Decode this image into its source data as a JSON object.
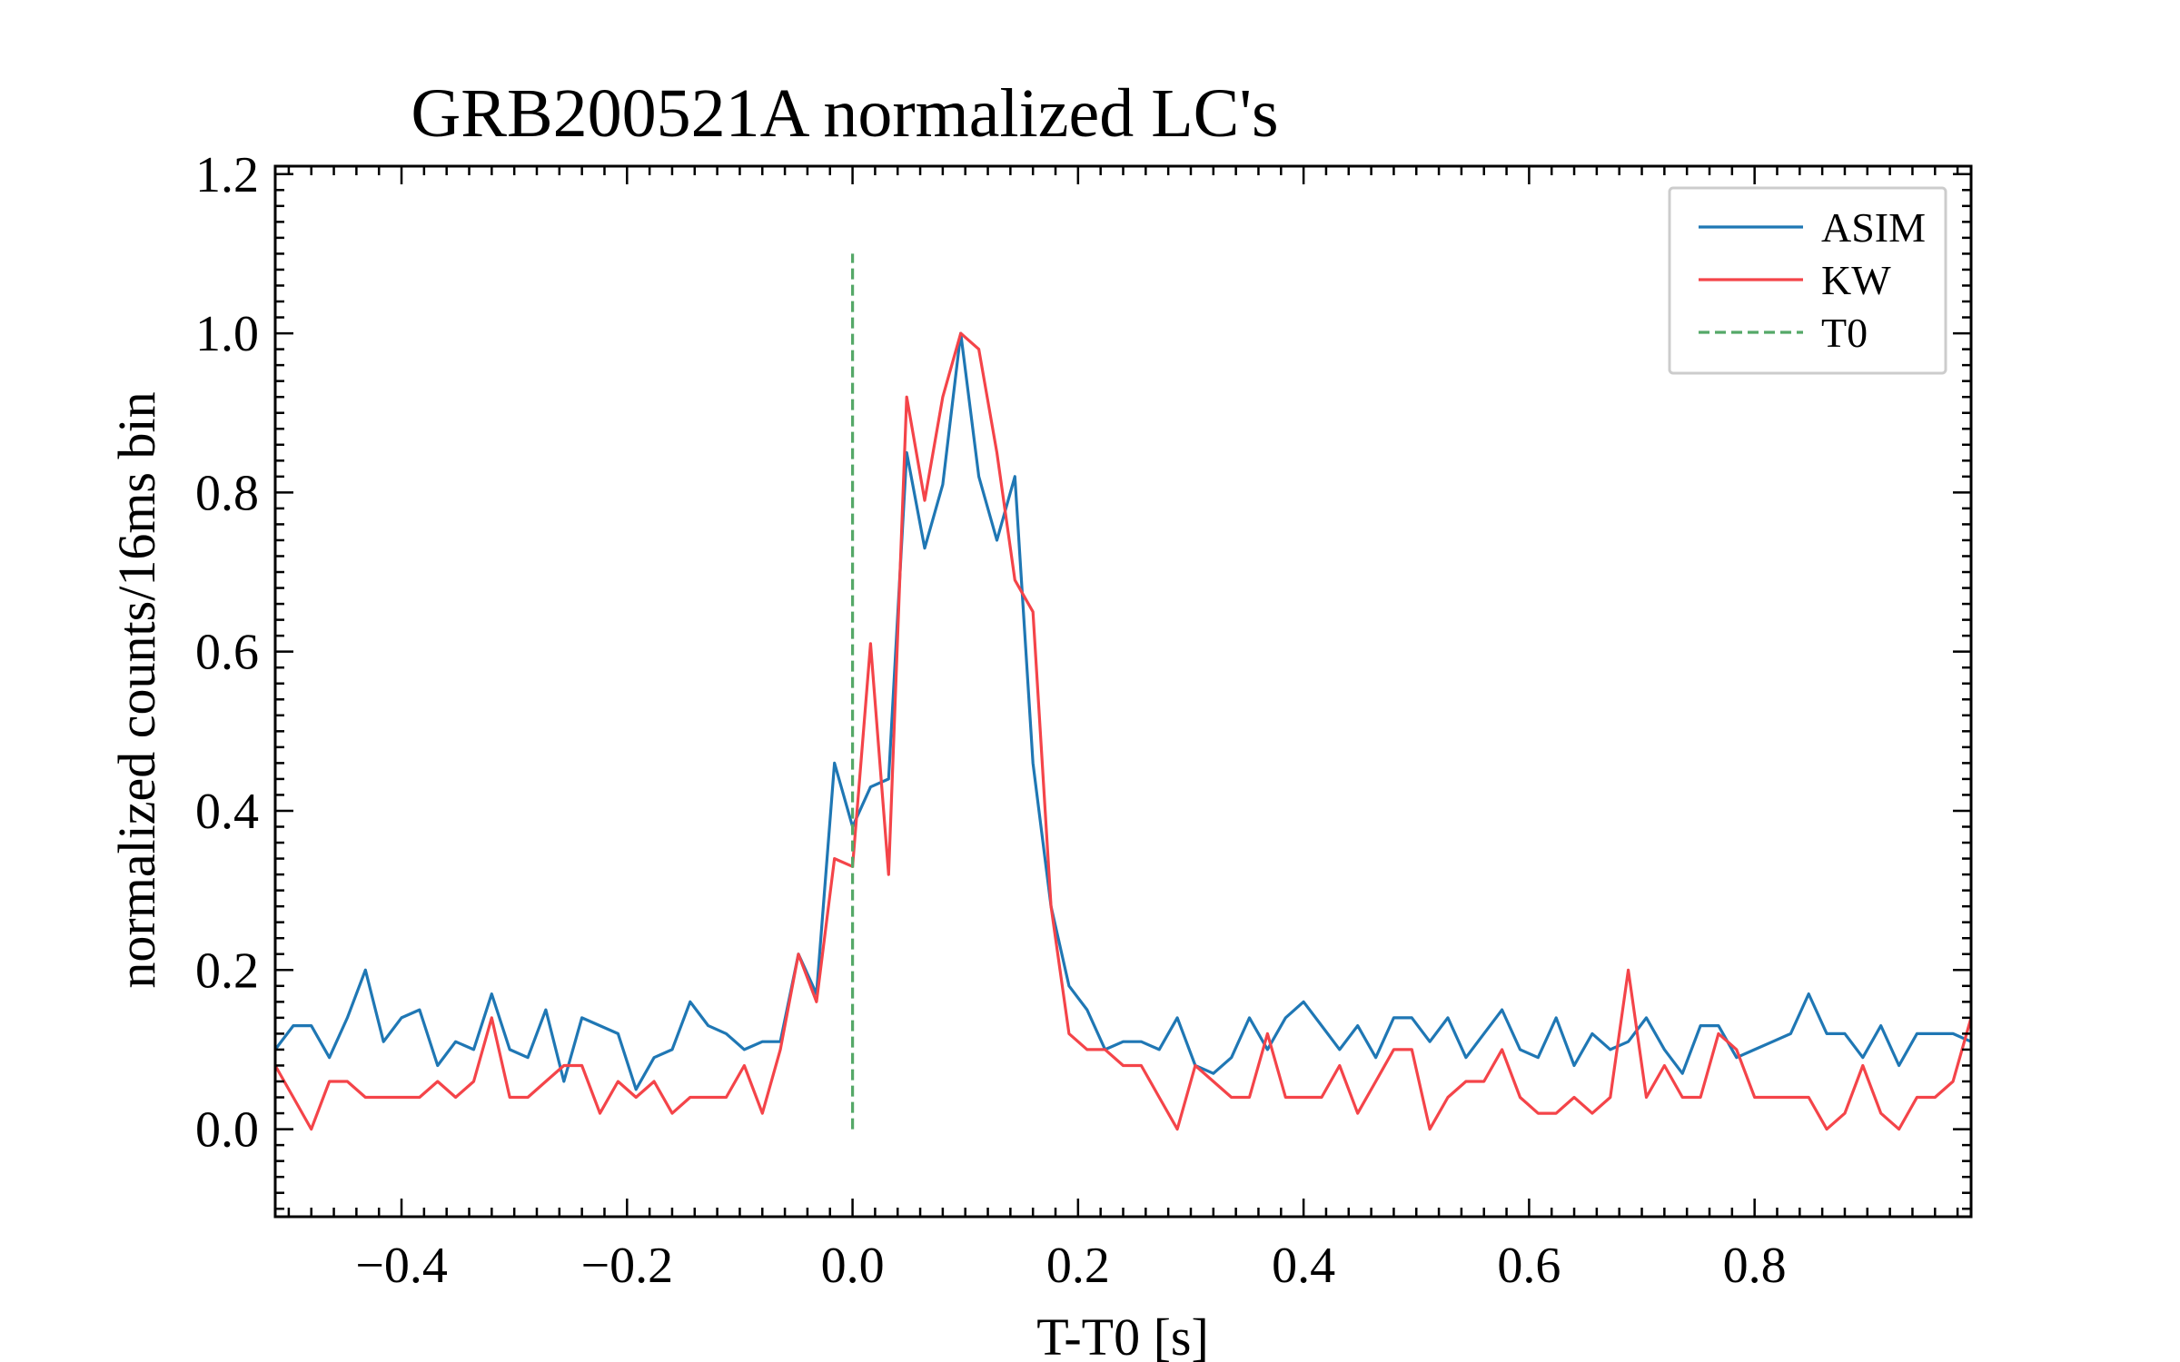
{
  "chart_data": {
    "type": "line",
    "title": "GRB200521A normalized LC's",
    "xlabel": "T-T0 [s]",
    "ylabel": "normalized counts/16ms bin",
    "xlim": [
      -0.512,
      0.992
    ],
    "ylim": [
      -0.11,
      1.21
    ],
    "xticks": [
      -0.4,
      -0.2,
      0.0,
      0.2,
      0.4,
      0.6,
      0.8
    ],
    "xtick_labels": [
      "−0.4",
      "−0.2",
      "0.0",
      "0.2",
      "0.4",
      "0.6",
      "0.8"
    ],
    "yticks": [
      0.0,
      0.2,
      0.4,
      0.6,
      0.8,
      1.0,
      1.2
    ],
    "ytick_labels": [
      "0.0",
      "0.2",
      "0.4",
      "0.6",
      "0.8",
      "1.0",
      "1.2"
    ],
    "legend_position": "top-right",
    "x_start": -0.512,
    "x_step": 0.016,
    "series": [
      {
        "name": "ASIM",
        "color": "#1f77b4",
        "style": "solid",
        "values": [
          0.1,
          0.13,
          0.13,
          0.09,
          0.14,
          0.2,
          0.11,
          0.14,
          0.15,
          0.08,
          0.11,
          0.1,
          0.17,
          0.1,
          0.09,
          0.15,
          0.06,
          0.14,
          0.13,
          0.12,
          0.05,
          0.09,
          0.1,
          0.16,
          0.13,
          0.12,
          0.1,
          0.11,
          0.11,
          0.22,
          0.17,
          0.46,
          0.38,
          0.43,
          0.44,
          0.85,
          0.73,
          0.81,
          1.0,
          0.82,
          0.74,
          0.82,
          0.46,
          0.28,
          0.18,
          0.15,
          0.1,
          0.11,
          0.11,
          0.1,
          0.14,
          0.08,
          0.07,
          0.09,
          0.14,
          0.1,
          0.14,
          0.16,
          0.13,
          0.1,
          0.13,
          0.09,
          0.14,
          0.14,
          0.11,
          0.14,
          0.09,
          0.12,
          0.15,
          0.1,
          0.09,
          0.14,
          0.08,
          0.12,
          0.1,
          0.11,
          0.14,
          0.1,
          0.07,
          0.13,
          0.13,
          0.09,
          0.1,
          0.11,
          0.12,
          0.17,
          0.12,
          0.12,
          0.09,
          0.13,
          0.08,
          0.12,
          0.12,
          0.12,
          0.11
        ]
      },
      {
        "name": "KW",
        "color": "#f44449",
        "style": "solid",
        "values": [
          0.08,
          0.04,
          0.0,
          0.06,
          0.06,
          0.04,
          0.04,
          0.04,
          0.04,
          0.06,
          0.04,
          0.06,
          0.14,
          0.04,
          0.04,
          0.06,
          0.08,
          0.08,
          0.02,
          0.06,
          0.04,
          0.06,
          0.02,
          0.04,
          0.04,
          0.04,
          0.08,
          0.02,
          0.1,
          0.22,
          0.16,
          0.34,
          0.33,
          0.61,
          0.32,
          0.92,
          0.79,
          0.92,
          1.0,
          0.98,
          0.85,
          0.69,
          0.65,
          0.28,
          0.12,
          0.1,
          0.1,
          0.08,
          0.08,
          0.04,
          0.0,
          0.08,
          0.06,
          0.04,
          0.04,
          0.12,
          0.04,
          0.04,
          0.04,
          0.08,
          0.02,
          0.06,
          0.1,
          0.1,
          0.0,
          0.04,
          0.06,
          0.06,
          0.1,
          0.04,
          0.02,
          0.02,
          0.04,
          0.02,
          0.04,
          0.2,
          0.04,
          0.08,
          0.04,
          0.04,
          0.12,
          0.1,
          0.04,
          0.04,
          0.04,
          0.04,
          0.0,
          0.02,
          0.08,
          0.02,
          0.0,
          0.04,
          0.04,
          0.06,
          0.14
        ]
      },
      {
        "name": "T0",
        "color": "#55a868",
        "style": "dashed",
        "x": [
          0.0,
          0.0
        ],
        "y": [
          0.0,
          1.1
        ]
      }
    ]
  }
}
